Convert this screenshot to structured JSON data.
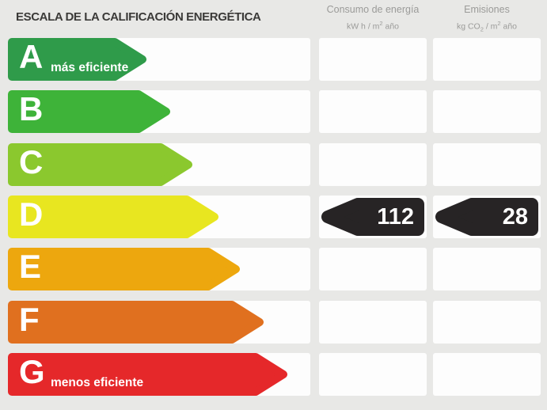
{
  "title": "ESCALA DE LA CALIFICACIÓN ENERGÉTICA",
  "columns": [
    {
      "id": "consumo",
      "label": "Consumo de energía",
      "unit_pre": "kW h / m",
      "unit_sub": "",
      "unit_mid": "",
      "unit_sup": "2",
      "unit_post": " año"
    },
    {
      "id": "emisiones",
      "label": "Emisiones",
      "unit_pre": "kg CO",
      "unit_sub": "2",
      "unit_mid": " / m",
      "unit_sup": "2",
      "unit_post": " año"
    }
  ],
  "scale": {
    "ratings": [
      {
        "letter": "A",
        "note": "más eficiente",
        "color": "#2f9b4a",
        "arrow_length": 175
      },
      {
        "letter": "B",
        "note": "",
        "color": "#3eb339",
        "arrow_length": 205
      },
      {
        "letter": "C",
        "note": "",
        "color": "#8bc82e",
        "arrow_length": 233
      },
      {
        "letter": "D",
        "note": "",
        "color": "#e8e620",
        "arrow_length": 266
      },
      {
        "letter": "E",
        "note": "",
        "color": "#eda70e",
        "arrow_length": 293
      },
      {
        "letter": "F",
        "note": "",
        "color": "#e0701f",
        "arrow_length": 323
      },
      {
        "letter": "G",
        "note": "menos eficiente",
        "color": "#e5282a",
        "arrow_length": 353
      }
    ],
    "current_rating": {
      "letter": "D",
      "consumo_value": "112",
      "emisiones_value": "28",
      "badge_color": "#272425"
    }
  },
  "colors": {
    "background": "#e8e8e6",
    "cell": "#fdfdfd",
    "header_text": "#9b9b99",
    "title_text": "#3b3a38",
    "arrow_text": "#ffffff"
  },
  "chart_data": {
    "type": "bar",
    "title": "ESCALA DE LA CALIFICACIÓN ENERGÉTICA",
    "categories": [
      "A",
      "B",
      "C",
      "D",
      "E",
      "F",
      "G"
    ],
    "series": [
      {
        "name": "Consumo de energía (kW h / m² año)",
        "values": [
          null,
          null,
          null,
          112,
          null,
          null,
          null
        ]
      },
      {
        "name": "Emisiones (kg CO₂ / m² año)",
        "values": [
          null,
          null,
          null,
          28,
          null,
          null,
          null
        ]
      }
    ],
    "current_rating": "D",
    "annotations": [
      "A = más eficiente",
      "G = menos eficiente"
    ],
    "layout": "horizontal energy-label arrows, length increases A→G"
  }
}
